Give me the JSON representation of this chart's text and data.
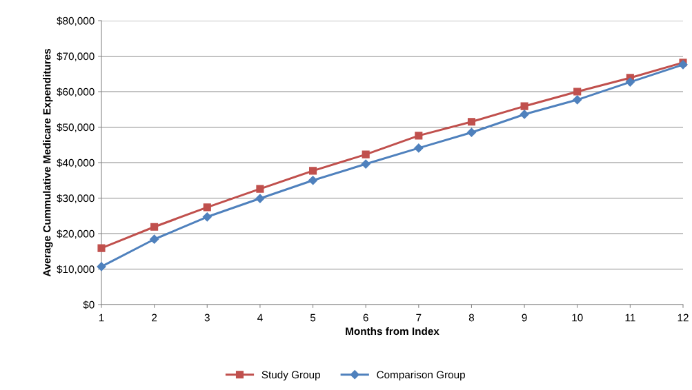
{
  "chart_data": {
    "type": "line",
    "xlabel": "Months from Index",
    "ylabel": "Average Cummulative Medicare Expenditures",
    "x": [
      1,
      2,
      3,
      4,
      5,
      6,
      7,
      8,
      9,
      10,
      11,
      12
    ],
    "series": [
      {
        "name": "Study Group",
        "color": "#c0504d",
        "marker": "square",
        "values": [
          15900,
          21900,
          27400,
          32600,
          37700,
          42300,
          47600,
          51500,
          55900,
          60000,
          63900,
          68200
        ]
      },
      {
        "name": "Comparison Group",
        "color": "#4f81bd",
        "marker": "diamond",
        "values": [
          10700,
          18400,
          24700,
          29900,
          35000,
          39600,
          44100,
          48500,
          53600,
          57700,
          62700,
          67600
        ]
      }
    ],
    "xlim": [
      1,
      12
    ],
    "xticks": [
      1,
      2,
      3,
      4,
      5,
      6,
      7,
      8,
      9,
      10,
      11,
      12
    ],
    "ylim": [
      0,
      80000
    ],
    "yticks": [
      {
        "value": 0,
        "label": "$0"
      },
      {
        "value": 10000,
        "label": "$10,000"
      },
      {
        "value": 20000,
        "label": "$20,000"
      },
      {
        "value": 30000,
        "label": "$30,000"
      },
      {
        "value": 40000,
        "label": "$40,000"
      },
      {
        "value": 50000,
        "label": "$50,000"
      },
      {
        "value": 60000,
        "label": "$60,000"
      },
      {
        "value": 70000,
        "label": "$70,000"
      },
      {
        "value": 80000,
        "label": "$80,000"
      }
    ],
    "grid": "y",
    "legend": "bottom",
    "line_style": "solid"
  }
}
